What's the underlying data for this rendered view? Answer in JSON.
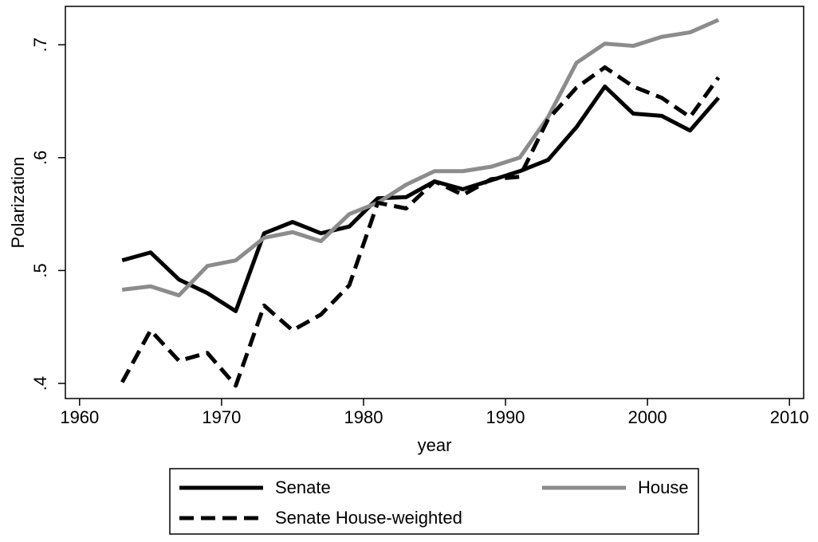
{
  "chart_data": {
    "type": "line",
    "x": [
      1963,
      1965,
      1967,
      1969,
      1971,
      1973,
      1975,
      1977,
      1979,
      1981,
      1983,
      1985,
      1987,
      1989,
      1991,
      1993,
      1995,
      1997,
      1999,
      2001,
      2003,
      2005
    ],
    "series": [
      {
        "name": "Senate",
        "color": "#000000",
        "dashed": false,
        "values": [
          0.509,
          0.516,
          0.492,
          0.48,
          0.464,
          0.533,
          0.543,
          0.533,
          0.539,
          0.564,
          0.565,
          0.579,
          0.572,
          0.58,
          0.588,
          0.598,
          0.627,
          0.663,
          0.639,
          0.637,
          0.624,
          0.653
        ]
      },
      {
        "name": "House",
        "color": "#8c8c8c",
        "dashed": false,
        "values": [
          0.483,
          0.486,
          0.478,
          0.504,
          0.509,
          0.529,
          0.534,
          0.526,
          0.55,
          0.56,
          0.576,
          0.588,
          0.588,
          0.592,
          0.6,
          0.636,
          0.684,
          0.701,
          0.699,
          0.707,
          0.711,
          0.722
        ]
      },
      {
        "name": "Senate House-weighted",
        "color": "#000000",
        "dashed": true,
        "values": [
          0.401,
          0.447,
          0.42,
          0.427,
          0.398,
          0.469,
          0.447,
          0.461,
          0.487,
          0.56,
          0.555,
          0.579,
          0.567,
          0.581,
          0.583,
          0.634,
          0.662,
          0.68,
          0.663,
          0.653,
          0.636,
          0.671
        ]
      }
    ],
    "x_label": "year",
    "y_label": "Polarization",
    "xlim": [
      1959,
      2011
    ],
    "xticks": [
      1960,
      1970,
      1980,
      1990,
      2000,
      2010
    ],
    "ylim": [
      0.3866,
      0.734
    ],
    "yticks": [
      {
        "value": 0.4,
        "label": ".4"
      },
      {
        "value": 0.5,
        "label": ".5"
      },
      {
        "value": 0.6,
        "label": ".6"
      },
      {
        "value": 0.7,
        "label": ".7"
      }
    ],
    "legend": "bottom"
  }
}
